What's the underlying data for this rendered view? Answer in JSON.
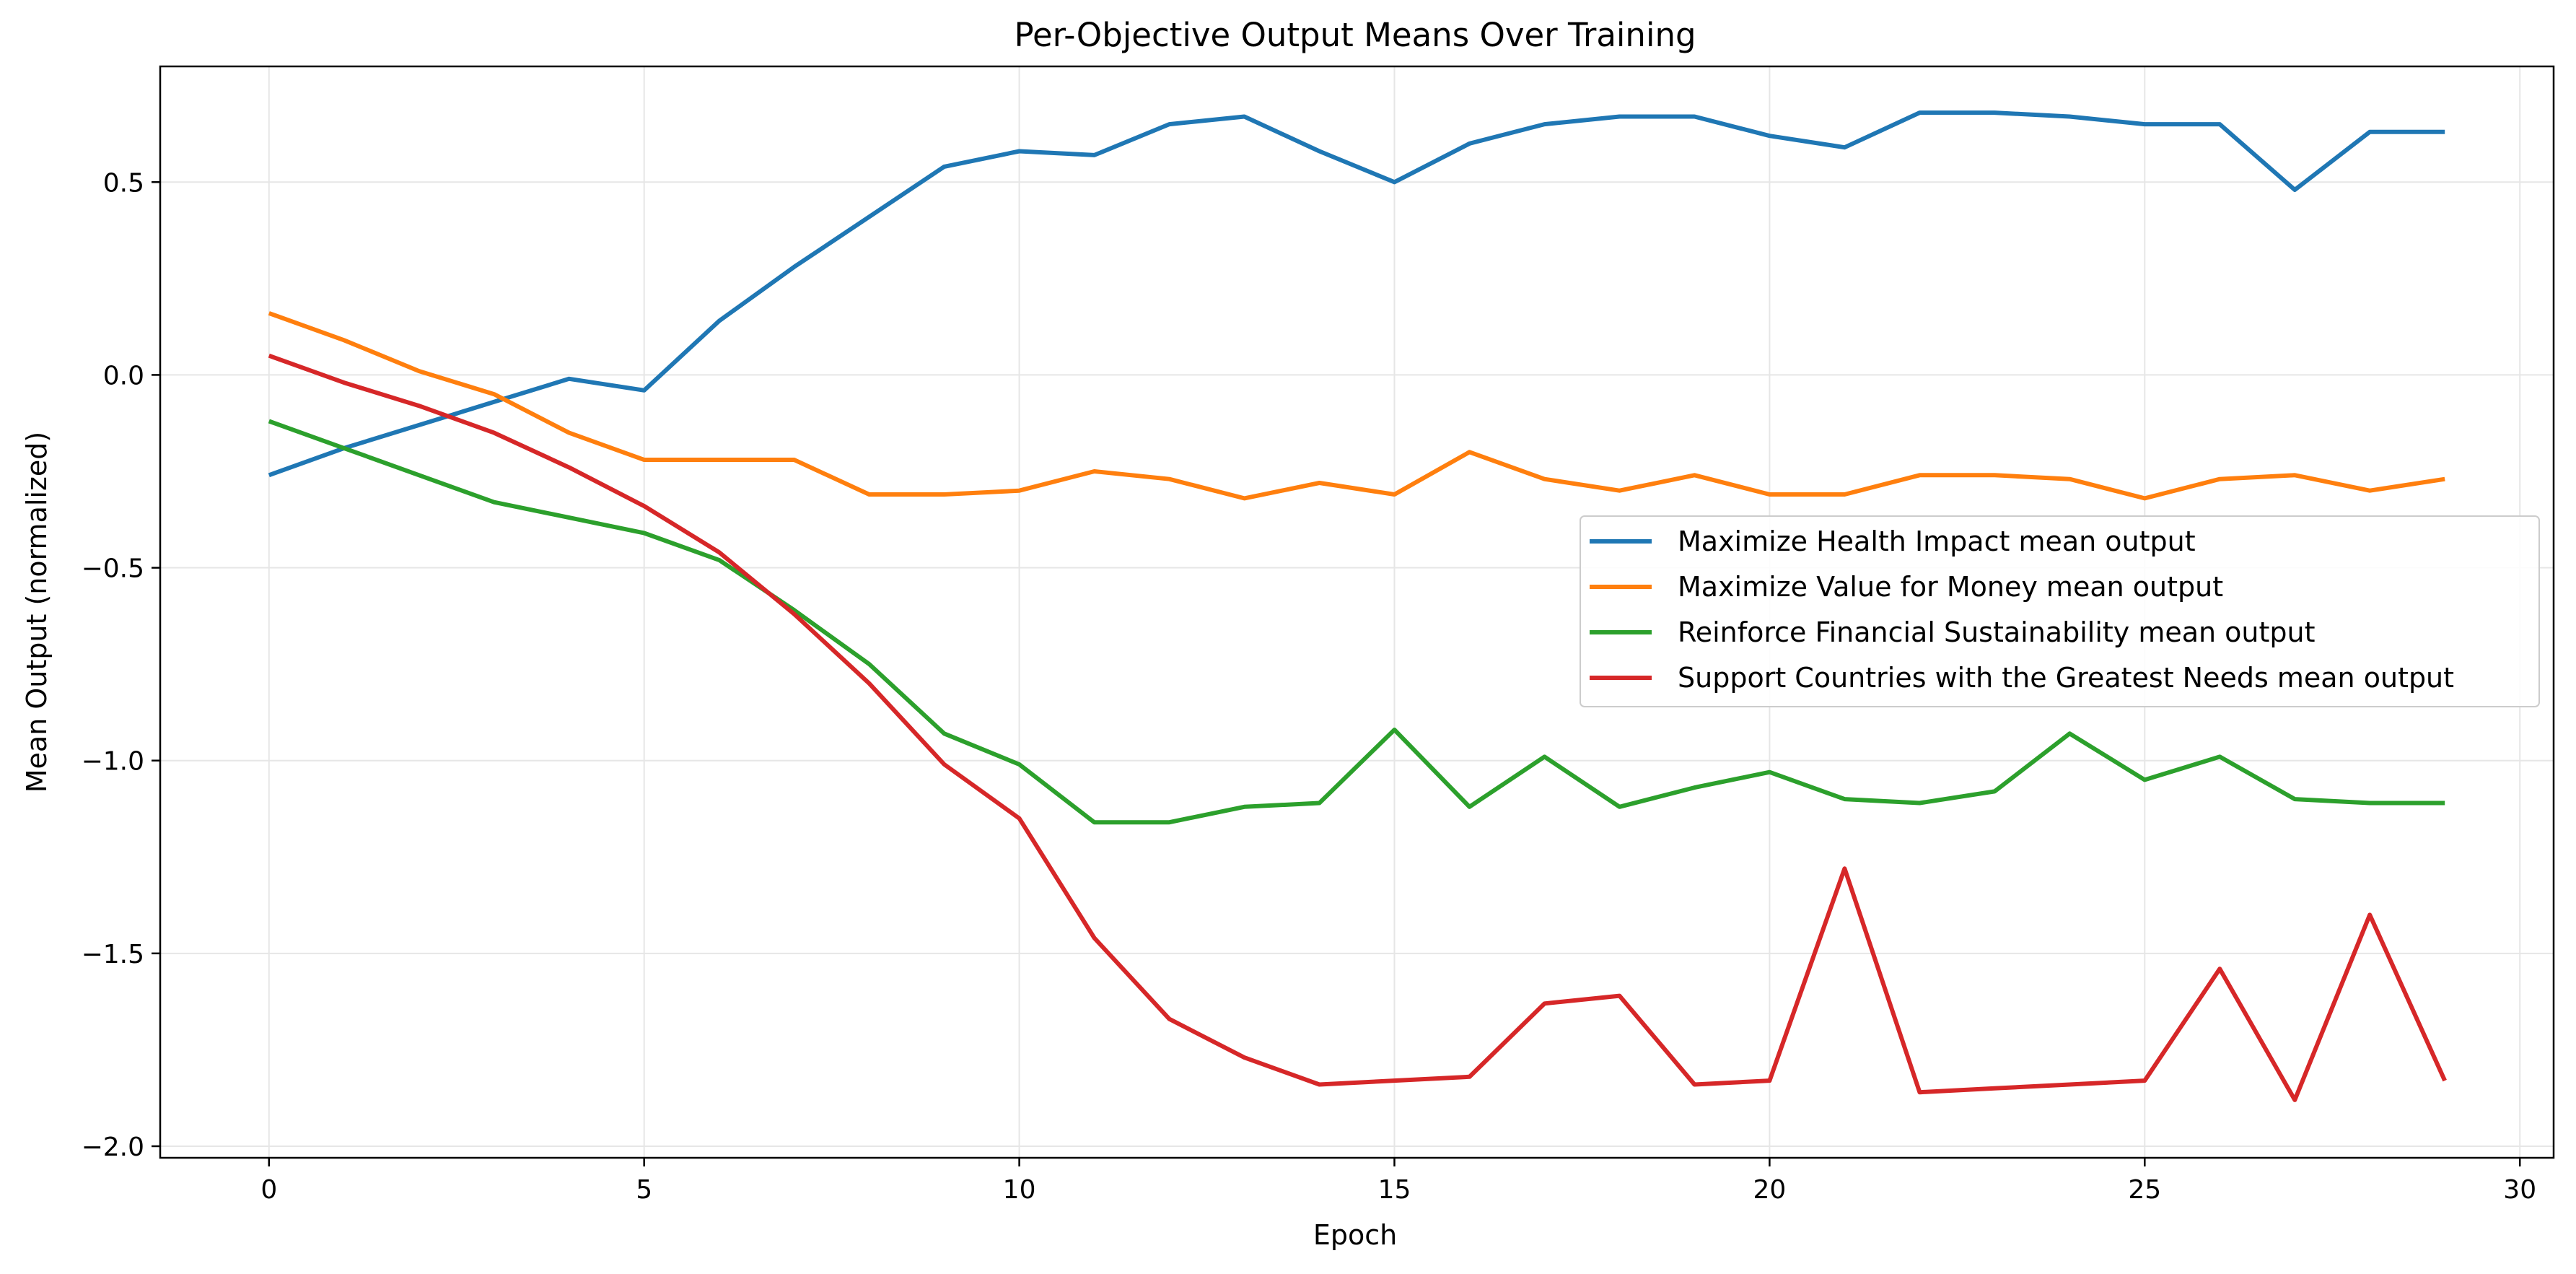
{
  "chart_data": {
    "type": "line",
    "title": "Per-Objective Output Means Over Training",
    "xlabel": "Epoch",
    "ylabel": "Mean Output (normalized)",
    "xlim": [
      -1.45,
      30.45
    ],
    "ylim": [
      -2.03,
      0.8
    ],
    "x_ticks": [
      0,
      5,
      10,
      15,
      20,
      25,
      30
    ],
    "x_tick_labels": [
      "0",
      "5",
      "10",
      "15",
      "20",
      "25",
      "30"
    ],
    "y_ticks": [
      0.5,
      0.0,
      -0.5,
      -1.0,
      -1.5,
      -2.0
    ],
    "y_tick_labels": [
      "0.5",
      "0.0",
      "−0.5",
      "−1.0",
      "−1.5",
      "−2.0"
    ],
    "grid": true,
    "legend_position": "center-right",
    "x": [
      0,
      1,
      2,
      3,
      4,
      5,
      6,
      7,
      8,
      9,
      10,
      11,
      12,
      13,
      14,
      15,
      16,
      17,
      18,
      19,
      20,
      21,
      22,
      23,
      24,
      25,
      26,
      27,
      28,
      29
    ],
    "series": [
      {
        "name": "Maximize Health Impact mean output",
        "color": "#1f77b4",
        "values": [
          -0.26,
          -0.19,
          -0.13,
          -0.07,
          -0.01,
          -0.04,
          0.14,
          0.28,
          0.41,
          0.54,
          0.58,
          0.57,
          0.65,
          0.67,
          0.58,
          0.5,
          0.6,
          0.65,
          0.67,
          0.67,
          0.62,
          0.59,
          0.68,
          0.68,
          0.67,
          0.65,
          0.65,
          0.48,
          0.63,
          0.63
        ]
      },
      {
        "name": "Maximize Value for Money mean output",
        "color": "#ff7f0e",
        "values": [
          0.16,
          0.09,
          0.01,
          -0.05,
          -0.15,
          -0.22,
          -0.22,
          -0.22,
          -0.31,
          -0.31,
          -0.3,
          -0.25,
          -0.27,
          -0.32,
          -0.28,
          -0.31,
          -0.2,
          -0.27,
          -0.3,
          -0.26,
          -0.31,
          -0.31,
          -0.26,
          -0.26,
          -0.27,
          -0.32,
          -0.27,
          -0.26,
          -0.3,
          -0.27
        ]
      },
      {
        "name": "Reinforce Financial Sustainability mean output",
        "color": "#2ca02c",
        "values": [
          -0.12,
          -0.19,
          -0.26,
          -0.33,
          -0.37,
          -0.41,
          -0.48,
          -0.61,
          -0.75,
          -0.93,
          -1.01,
          -1.16,
          -1.16,
          -1.12,
          -1.11,
          -0.92,
          -1.12,
          -0.99,
          -1.12,
          -1.07,
          -1.03,
          -1.1,
          -1.11,
          -1.08,
          -0.93,
          -1.05,
          -0.99,
          -1.1,
          -1.11,
          -1.11
        ]
      },
      {
        "name": "Support Countries with the Greatest Needs mean output",
        "color": "#d62728",
        "values": [
          0.05,
          -0.02,
          -0.08,
          -0.15,
          -0.24,
          -0.34,
          -0.46,
          -0.62,
          -0.8,
          -1.01,
          -1.15,
          -1.46,
          -1.67,
          -1.77,
          -1.84,
          -1.83,
          -1.82,
          -1.63,
          -1.61,
          -1.84,
          -1.83,
          -1.28,
          -1.86,
          -1.85,
          -1.84,
          -1.83,
          -1.54,
          -1.88,
          -1.4,
          -1.83
        ]
      }
    ]
  }
}
